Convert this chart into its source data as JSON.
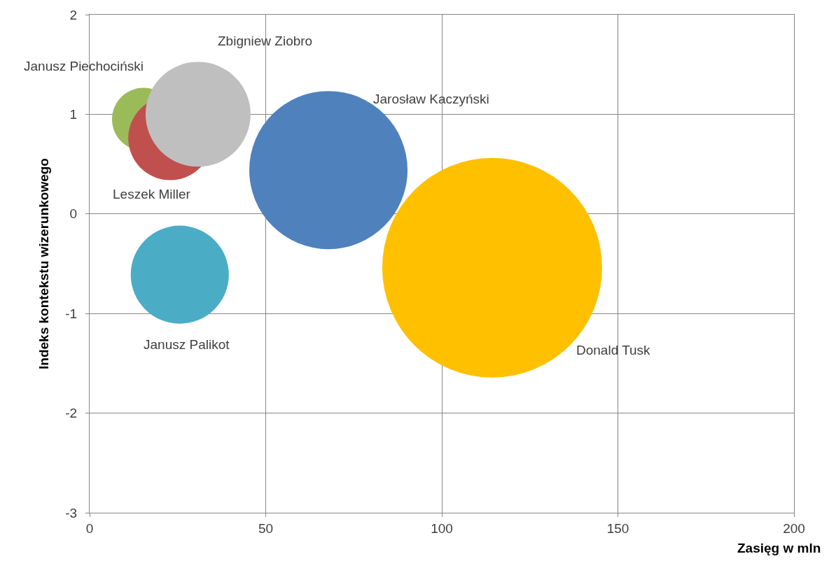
{
  "chart_data": {
    "type": "bubble",
    "xlabel": "Zasięg w mln",
    "ylabel": "Indeks kontekstu wizerunkowego",
    "xlim": [
      0,
      200
    ],
    "xticks": [
      0,
      50,
      100,
      150,
      200
    ],
    "ylim": [
      -3,
      2
    ],
    "yticks": [
      -3,
      -2,
      -1,
      0,
      1,
      2
    ],
    "grid": true,
    "legend": false,
    "series": [
      {
        "name": "Janusz Piechociński",
        "color": "#9bbb59",
        "x": [
          15.3
        ],
        "values": [
          0.95
        ],
        "sizes": [
          0.082
        ]
      },
      {
        "name": "Leszek Miller",
        "color": "#c0504d",
        "x": [
          22.9
        ],
        "values": [
          0.76
        ],
        "sizes": [
          0.146
        ]
      },
      {
        "name": "Zbigniew Ziobro",
        "color": "#bfbfbf",
        "x": [
          30.8
        ],
        "values": [
          1.0
        ],
        "sizes": [
          0.228
        ]
      },
      {
        "name": "Jarosław Kaczyński",
        "color": "#4f81bd",
        "x": [
          67.8
        ],
        "values": [
          0.44
        ],
        "sizes": [
          0.518
        ]
      },
      {
        "name": "Janusz Palikot",
        "color": "#4bacc6",
        "x": [
          25.6
        ],
        "values": [
          -0.61
        ],
        "sizes": [
          0.199
        ]
      },
      {
        "name": "Donald Tusk",
        "color": "#ffc000",
        "x": [
          114.3
        ],
        "values": [
          -0.54
        ],
        "sizes": [
          1
        ]
      }
    ]
  }
}
